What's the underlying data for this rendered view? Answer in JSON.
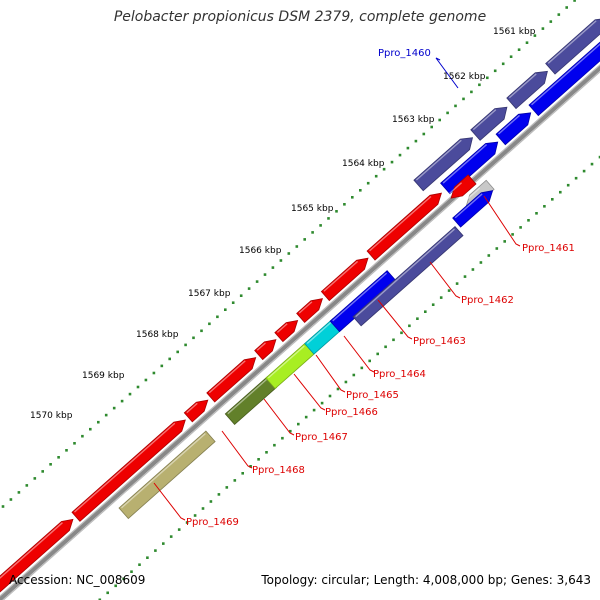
{
  "title": "Pelobacter propionicus DSM 2379, complete genome",
  "footer": {
    "accession": "Accession: NC_008609",
    "summary": "Topology: circular; Length: 4,008,000 bp; Genes: 3,643"
  },
  "colors": {
    "backbone": "#888888",
    "dot_track": "#2f8a2f",
    "label_forward": "#dd0000",
    "label_reverse": "#0000cc"
  },
  "ticks": [
    {
      "label": "1561 kbp"
    },
    {
      "label": "1562 kbp"
    },
    {
      "label": "1563 kbp"
    },
    {
      "label": "1564 kbp"
    },
    {
      "label": "1565 kbp"
    },
    {
      "label": "1566 kbp"
    },
    {
      "label": "1567 kbp"
    },
    {
      "label": "1568 kbp"
    },
    {
      "label": "1569 kbp"
    },
    {
      "label": "1570 kbp"
    }
  ],
  "genes": [
    {
      "name": "Ppro_1460",
      "color": "#0000ee",
      "label_color": "#0000cc"
    },
    {
      "name": "Ppro_1461",
      "color": "#c8c8c8",
      "label_color": "#dd0000"
    },
    {
      "name": "Ppro_1462",
      "color": "#4b4b9c",
      "label_color": "#dd0000"
    },
    {
      "name": "Ppro_1463",
      "color": "#0000ee",
      "label_color": "#dd0000"
    },
    {
      "name": "Ppro_1464",
      "color": "#00d0d8",
      "label_color": "#dd0000"
    },
    {
      "name": "Ppro_1465",
      "color": "#a8ee22",
      "label_color": "#dd0000"
    },
    {
      "name": "Ppro_1466",
      "color": "#62802a",
      "label_color": "#dd0000"
    },
    {
      "name": "Ppro_1467",
      "color": "#ee0000",
      "label_color": "#dd0000"
    },
    {
      "name": "Ppro_1468",
      "color": "#ee0000",
      "label_color": "#dd0000"
    },
    {
      "name": "Ppro_1469",
      "color": "#b8b070",
      "label_color": "#dd0000"
    }
  ]
}
